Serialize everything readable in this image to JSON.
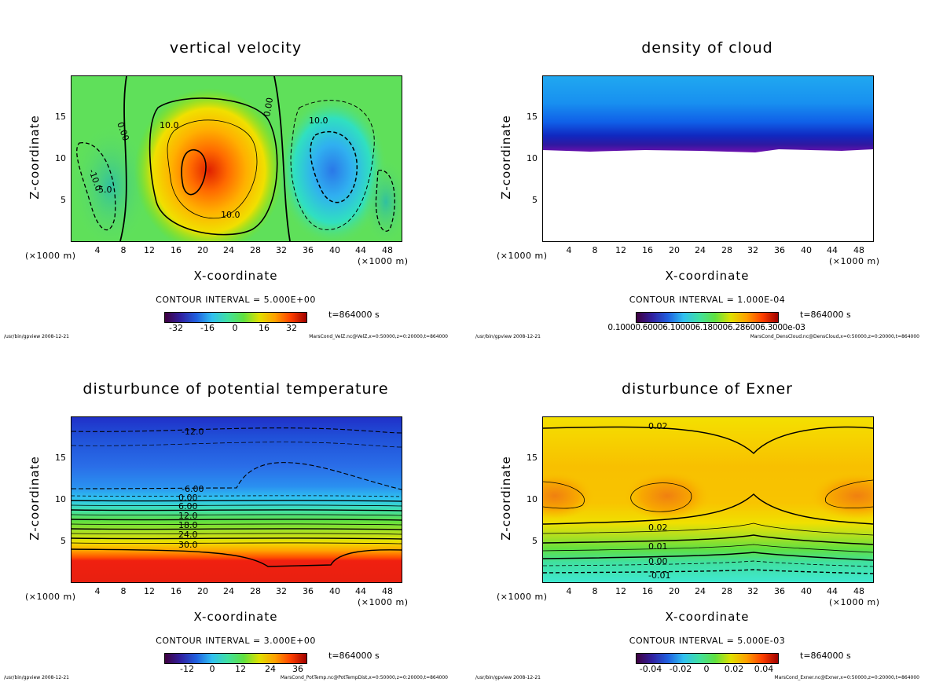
{
  "chart_data": [
    {
      "type": "heatmap",
      "title": "vertical velocity",
      "xlabel": "X-coordinate",
      "ylabel": "Z-coordinate",
      "x_unit": "(×1000 m)",
      "xlim": [
        0,
        50
      ],
      "ylim": [
        0,
        20
      ],
      "x_ticks": [
        "4",
        "8",
        "12",
        "16",
        "20",
        "24",
        "28",
        "32",
        "36",
        "40",
        "44",
        "48"
      ],
      "y_ticks": [
        "5",
        "10",
        "15"
      ],
      "contour_interval_text": "CONTOUR INTERVAL = 5.000E+00",
      "contour_labels": [
        "10.0",
        "0.00",
        "0.00",
        "10.0",
        "10.0",
        "-10.0",
        "-5.0"
      ],
      "colorbar_ticks": [
        "-32",
        "-16",
        "0",
        "16",
        "32"
      ],
      "colorbar_range": [
        -40,
        40
      ],
      "time_label": "t=864000 s",
      "footer_left": "/usr/bin/gpview  2008-12-21",
      "footer_right": "MarsCond_VelZ.nc@VelZ,x=0:50000,z=0:20000,t=864000"
    },
    {
      "type": "heatmap",
      "title": "density of cloud",
      "xlabel": "X-coordinate",
      "ylabel": "Z-coordinate",
      "x_unit": "(×1000 m)",
      "xlim": [
        0,
        50
      ],
      "ylim": [
        0,
        20
      ],
      "x_ticks": [
        "4",
        "8",
        "12",
        "16",
        "20",
        "24",
        "28",
        "32",
        "36",
        "40",
        "44",
        "48"
      ],
      "y_ticks": [
        "5",
        "10",
        "15"
      ],
      "contour_interval_text": "CONTOUR INTERVAL = 1.000E-04",
      "colorbar_ticks_text": "0.10000.60006.100006.180006.286006.3000e-03",
      "cloud_base_km": 11,
      "time_label": "t=864000 s",
      "footer_left": "/usr/bin/gpview  2008-12-21",
      "footer_right": "MarsCond_DensCloud.nc@DensCloud,x=0:50000,z=0:20000,t=864000"
    },
    {
      "type": "heatmap",
      "title": "disturbunce of potential temperature",
      "xlabel": "X-coordinate",
      "ylabel": "Z-coordinate",
      "x_unit": "(×1000 m)",
      "xlim": [
        0,
        50
      ],
      "ylim": [
        0,
        20
      ],
      "x_ticks": [
        "4",
        "8",
        "12",
        "16",
        "20",
        "24",
        "28",
        "32",
        "36",
        "40",
        "44",
        "48"
      ],
      "y_ticks": [
        "5",
        "10",
        "15"
      ],
      "contour_interval_text": "CONTOUR INTERVAL = 3.000E+00",
      "contour_labels": [
        "-12.0",
        "-6.00",
        "0.00",
        "6.00",
        "12.0",
        "18.0",
        "24.0",
        "30.0"
      ],
      "colorbar_ticks": [
        "-12",
        "0",
        "12",
        "24",
        "36"
      ],
      "colorbar_range": [
        -24,
        42
      ],
      "time_label": "t=864000 s",
      "footer_left": "/usr/bin/gpview  2008-12-21",
      "footer_right": "MarsCond_PotTemp.nc@PotTempDist,x=0:50000,z=0:20000,t=864000"
    },
    {
      "type": "heatmap",
      "title": "disturbunce of Exner",
      "xlabel": "X-coordinate",
      "ylabel": "Z-coordinate",
      "x_unit": "(×1000 m)",
      "xlim": [
        0,
        50
      ],
      "ylim": [
        0,
        20
      ],
      "x_ticks": [
        "4",
        "8",
        "12",
        "16",
        "20",
        "24",
        "28",
        "32",
        "36",
        "40",
        "44",
        "48"
      ],
      "y_ticks": [
        "5",
        "10",
        "15"
      ],
      "contour_interval_text": "CONTOUR INTERVAL = 5.000E-03",
      "contour_labels": [
        "0.02",
        "0.02",
        "0.01",
        "0.00",
        "-0.01"
      ],
      "colorbar_ticks": [
        "-0.04",
        "-0.02",
        "0",
        "0.02",
        "0.04"
      ],
      "colorbar_range": [
        -0.05,
        0.05
      ],
      "time_label": "t=864000 s",
      "footer_left": "/usr/bin/gpview  2008-12-21",
      "footer_right": "MarsCond_Exner.nc@Exner,x=0:50000,z=0:20000,t=864000"
    }
  ]
}
